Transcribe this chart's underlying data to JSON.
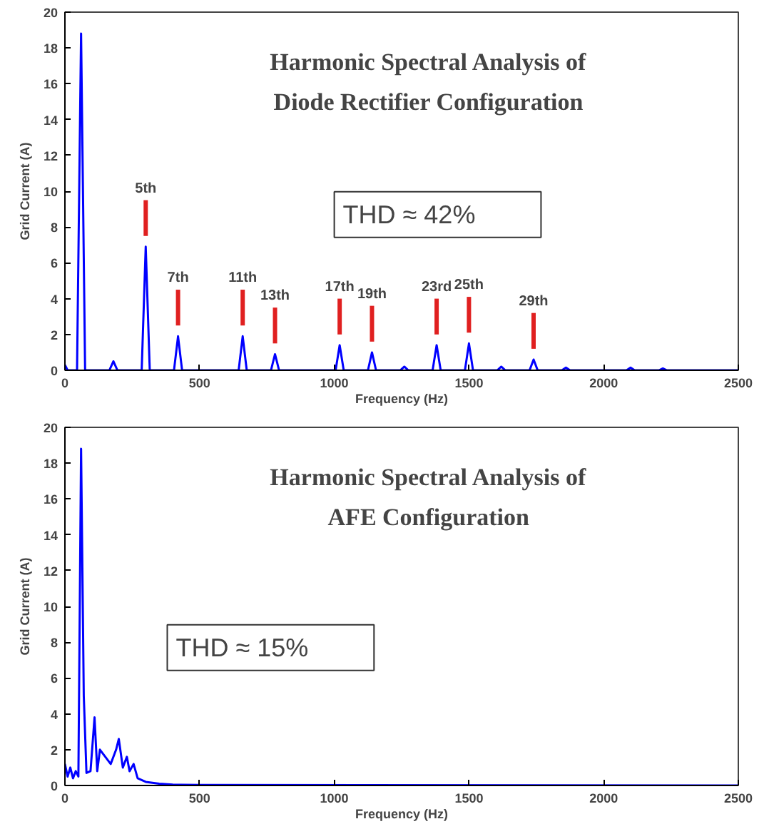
{
  "chart_data": [
    {
      "type": "line",
      "title": "Harmonic Spectral Analysis of\nDiode Rectifier Configuration",
      "xlabel": "Frequency (Hz)",
      "ylabel": "Grid Current (A)",
      "series": [
        {
          "color": "#0000ff",
          "x": [
            0,
            10,
            45,
            60,
            75,
            165,
            180,
            195,
            285,
            300,
            315,
            405,
            420,
            435,
            645,
            660,
            675,
            765,
            780,
            795,
            1005,
            1020,
            1035,
            1125,
            1140,
            1155,
            1245,
            1260,
            1275,
            1365,
            1380,
            1395,
            1485,
            1500,
            1515,
            1605,
            1620,
            1635,
            1725,
            1740,
            1755,
            1845,
            1860,
            1875,
            2085,
            2100,
            2115,
            2205,
            2220,
            2235,
            2500
          ],
          "values": [
            0.3,
            0,
            0,
            18.8,
            0,
            0,
            0.5,
            0,
            0,
            6.9,
            0,
            0,
            1.9,
            0,
            0,
            1.9,
            0,
            0,
            0.9,
            0,
            0,
            1.4,
            0,
            0,
            1.0,
            0,
            0,
            0.2,
            0,
            0,
            1.4,
            0,
            0,
            1.5,
            0,
            0,
            0.2,
            0,
            0,
            0.6,
            0,
            0,
            0.15,
            0,
            0,
            0.15,
            0,
            0,
            0.1,
            0,
            0
          ]
        }
      ],
      "annotations": [
        "THD ≈ 42%",
        {
          "text": "5th",
          "x": 300,
          "y": 6.9
        },
        {
          "text": "7th",
          "x": 420,
          "y": 1.9
        },
        {
          "text": "11th",
          "x": 660,
          "y": 1.9
        },
        {
          "text": "13th",
          "x": 780,
          "y": 0.9
        },
        {
          "text": "17th",
          "x": 1020,
          "y": 1.4
        },
        {
          "text": "19th",
          "x": 1140,
          "y": 1.0
        },
        {
          "text": "23rd",
          "x": 1380,
          "y": 1.4
        },
        {
          "text": "25th",
          "x": 1500,
          "y": 1.5
        },
        {
          "text": "29th",
          "x": 1740,
          "y": 0.6
        }
      ],
      "xlim": [
        0,
        2500
      ],
      "ylim": [
        0,
        20
      ],
      "xticks": [
        0,
        500,
        1000,
        1500,
        2000,
        2500
      ],
      "yticks": [
        0,
        2,
        4,
        6,
        8,
        10,
        12,
        14,
        16,
        18,
        20
      ]
    },
    {
      "type": "line",
      "title": "Harmonic Spectral Analysis of\nAFE Configuration",
      "xlabel": "Frequency (Hz)",
      "ylabel": "Grid Current (A)",
      "series": [
        {
          "color": "#0000ff",
          "x": [
            0,
            10,
            20,
            30,
            40,
            50,
            60,
            70,
            80,
            95,
            110,
            120,
            130,
            150,
            170,
            190,
            200,
            215,
            230,
            240,
            255,
            270,
            300,
            350,
            400,
            500,
            2500
          ],
          "values": [
            1.2,
            0.5,
            1.0,
            0.4,
            0.8,
            0.5,
            18.8,
            5,
            0.7,
            0.8,
            3.8,
            0.8,
            2.0,
            1.6,
            1.2,
            2.0,
            2.6,
            1.0,
            1.6,
            0.8,
            1.2,
            0.4,
            0.2,
            0.1,
            0.05,
            0.03,
            0
          ]
        }
      ],
      "annotations": [
        "THD ≈ 15%"
      ],
      "xlim": [
        0,
        2500
      ],
      "ylim": [
        0,
        20
      ],
      "xticks": [
        0,
        500,
        1000,
        1500,
        2000,
        2500
      ],
      "yticks": [
        0,
        2,
        4,
        6,
        8,
        10,
        12,
        14,
        16,
        18,
        20
      ]
    }
  ]
}
